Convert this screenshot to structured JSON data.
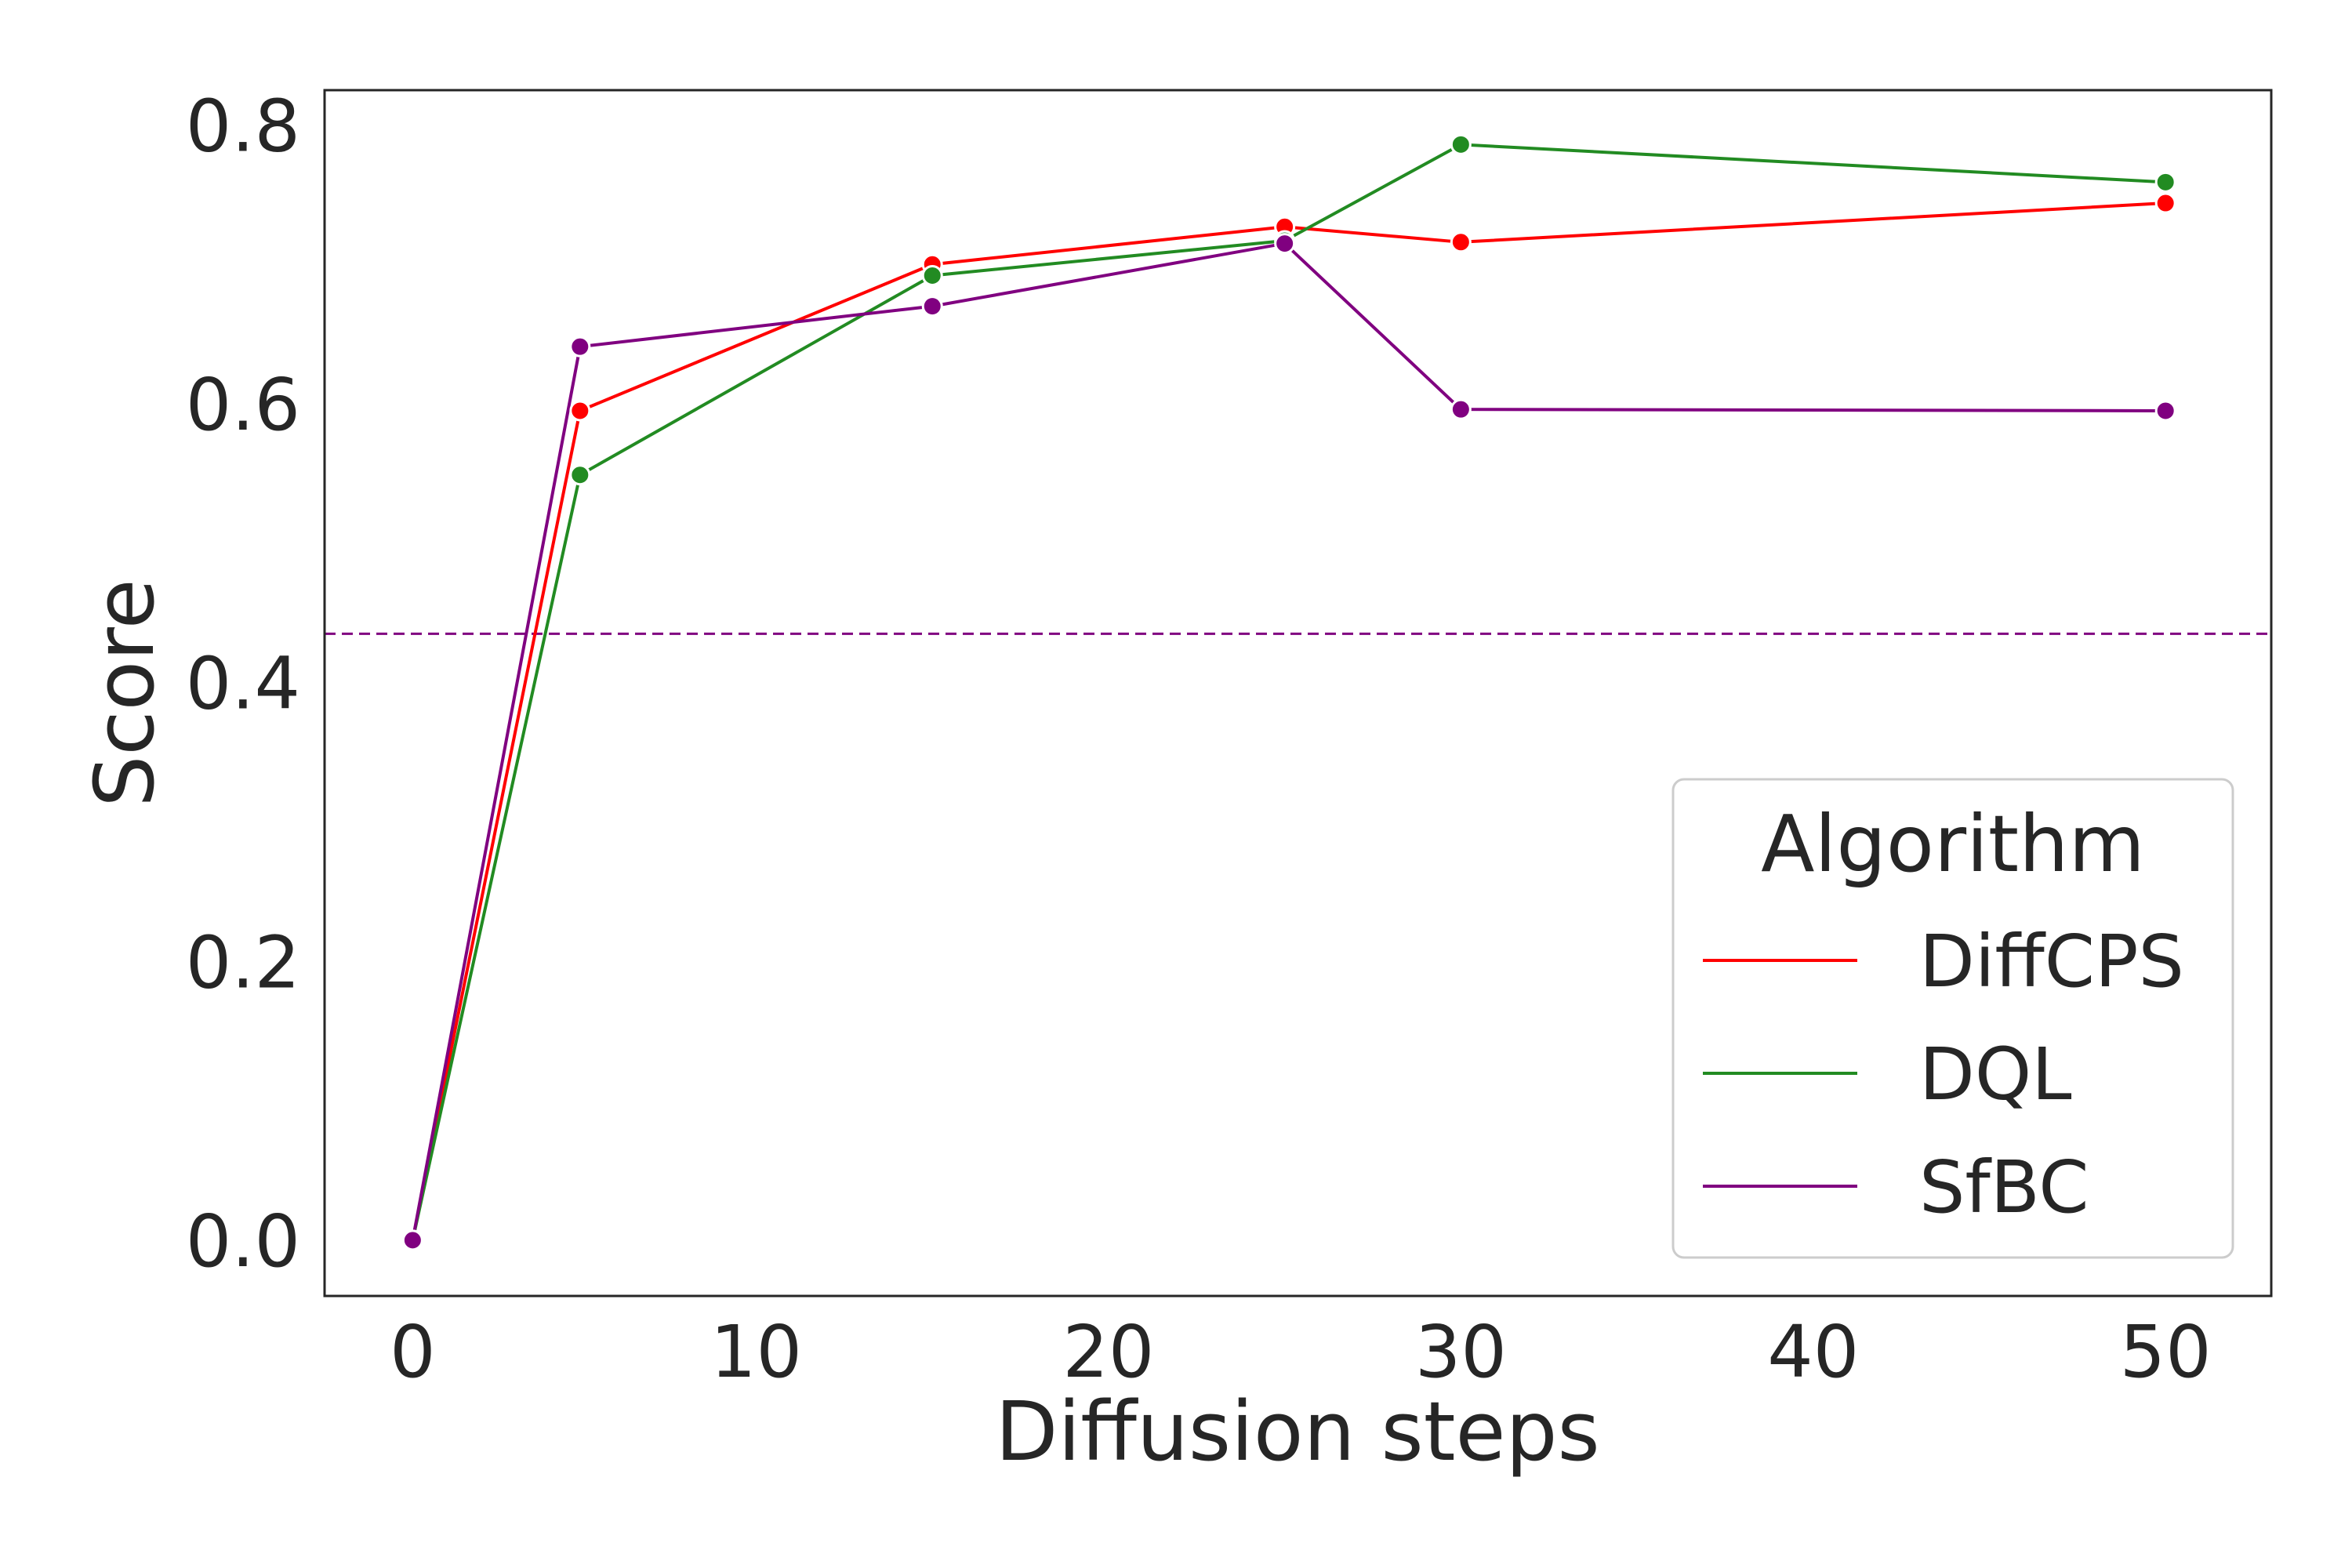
{
  "chart_data": {
    "type": "line",
    "xlabel": "Diffusion steps",
    "ylabel": "Score",
    "x_tick_labels": [
      "0",
      "10",
      "20",
      "30",
      "40",
      "50"
    ],
    "y_tick_labels": [
      "0.0",
      "0.2",
      "0.4",
      "0.6",
      "0.8"
    ],
    "x_ticks": [
      0,
      10,
      20,
      30,
      40,
      50
    ],
    "y_ticks": [
      0.0,
      0.2,
      0.4,
      0.6,
      0.8
    ],
    "x_categories": [
      "0",
      "5",
      "15",
      "25",
      "30",
      "50"
    ],
    "xlim": [
      -0.5,
      5.5
    ],
    "ylim": [
      -0.04,
      0.825
    ],
    "grid": false,
    "legend": {
      "title": "Algorithm",
      "position": "lower right"
    },
    "series": [
      {
        "name": "DiffCPS",
        "color": "#ff0000",
        "values": [
          0.0,
          0.595,
          0.7,
          0.727,
          0.716,
          0.744
        ]
      },
      {
        "name": "DQL",
        "color": "#228b22",
        "values": [
          0.0,
          0.549,
          0.692,
          0.717,
          0.786,
          0.759
        ]
      },
      {
        "name": "SfBC",
        "color": "#800080",
        "values": [
          0.0,
          0.641,
          0.67,
          0.715,
          0.596,
          0.595
        ]
      }
    ],
    "reference_line": {
      "y": 0.435,
      "style": "dashed",
      "color": "#800080"
    }
  }
}
